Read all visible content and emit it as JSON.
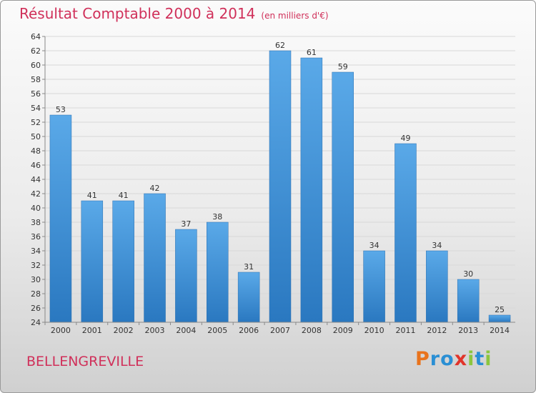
{
  "page": {
    "title": "Résultat Comptable 2000 à 2014",
    "subtitle": "(en milliers d'€)",
    "commune": "BELLENGREVILLE",
    "logo": {
      "letters": [
        "P",
        "r",
        "o",
        "x",
        "i",
        "t",
        "i"
      ],
      "colors": [
        "#e9731c",
        "#2a8fd4",
        "#2a8fd4",
        "#e1342a",
        "#8cc63e",
        "#2a8fd4",
        "#8cc63e"
      ]
    }
  },
  "chart_data": {
    "type": "bar",
    "title": "Résultat Comptable 2000 à 2014",
    "subtitle": "(en milliers d'€)",
    "categories": [
      "2000",
      "2001",
      "2002",
      "2003",
      "2004",
      "2005",
      "2006",
      "2007",
      "2008",
      "2009",
      "2010",
      "2011",
      "2012",
      "2013",
      "2014"
    ],
    "values": [
      53,
      41,
      41,
      42,
      37,
      38,
      31,
      62,
      61,
      59,
      34,
      49,
      34,
      30,
      25
    ],
    "xlabel": "",
    "ylabel": "",
    "ylim": [
      24,
      64
    ],
    "yticks": [
      24,
      26,
      28,
      30,
      32,
      34,
      36,
      38,
      40,
      42,
      44,
      46,
      48,
      50,
      52,
      54,
      56,
      58,
      60,
      62,
      64
    ],
    "grid": true,
    "legend": "none",
    "bar_color": "#4f9fe0",
    "bar_color_dark": "#2a78c0"
  }
}
